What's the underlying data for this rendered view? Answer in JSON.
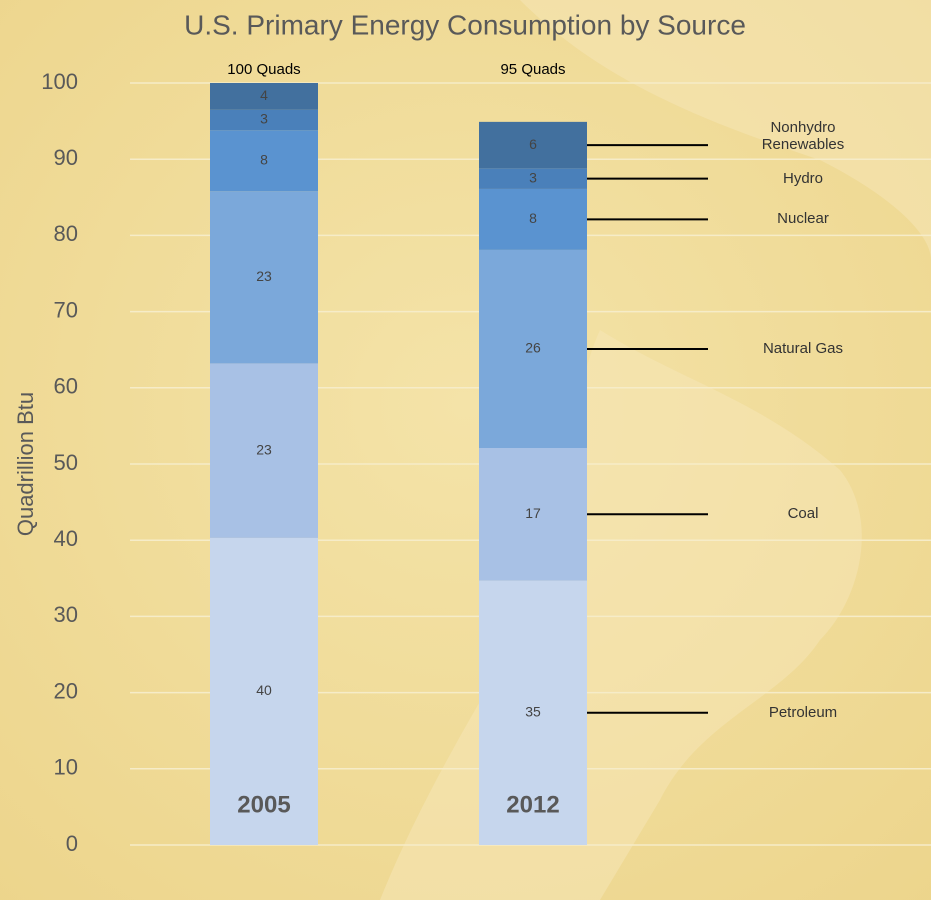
{
  "chart_data": {
    "type": "stacked_bar",
    "title": "U.S. Primary Energy Consumption by Source",
    "y_label": "Quadrillion Btu",
    "categories": [
      "2005",
      "2012"
    ],
    "annotations": [
      "100 Quads",
      "95 Quads"
    ],
    "series": [
      {
        "name": "Petroleum",
        "color": "#c6d6ed",
        "values": [
          40.3,
          34.7
        ],
        "value_labels": [
          "40",
          "35"
        ]
      },
      {
        "name": "Coal",
        "color": "#a8c1e5",
        "values": [
          22.9,
          17.4
        ],
        "value_labels": [
          "23",
          "17"
        ]
      },
      {
        "name": "Natural Gas",
        "color": "#7ba8da",
        "values": [
          22.6,
          26.0
        ],
        "value_labels": [
          "23",
          "26"
        ]
      },
      {
        "name": "Nuclear",
        "color": "#5a93d0",
        "values": [
          8.0,
          8.0
        ],
        "value_labels": [
          "8",
          "8"
        ]
      },
      {
        "name": "Hydro",
        "color": "#4a80ba",
        "values": [
          2.7,
          2.7
        ],
        "value_labels": [
          "3",
          "3"
        ]
      },
      {
        "name": "Nonhydro Renewables",
        "color": "#42709e",
        "values": [
          3.5,
          6.1
        ],
        "value_labels": [
          "4",
          "6"
        ]
      }
    ],
    "ylim": [
      0,
      100
    ],
    "yticks": [
      0,
      10,
      20,
      30,
      40,
      50,
      60,
      70,
      80,
      90,
      100
    ],
    "grid": true
  }
}
